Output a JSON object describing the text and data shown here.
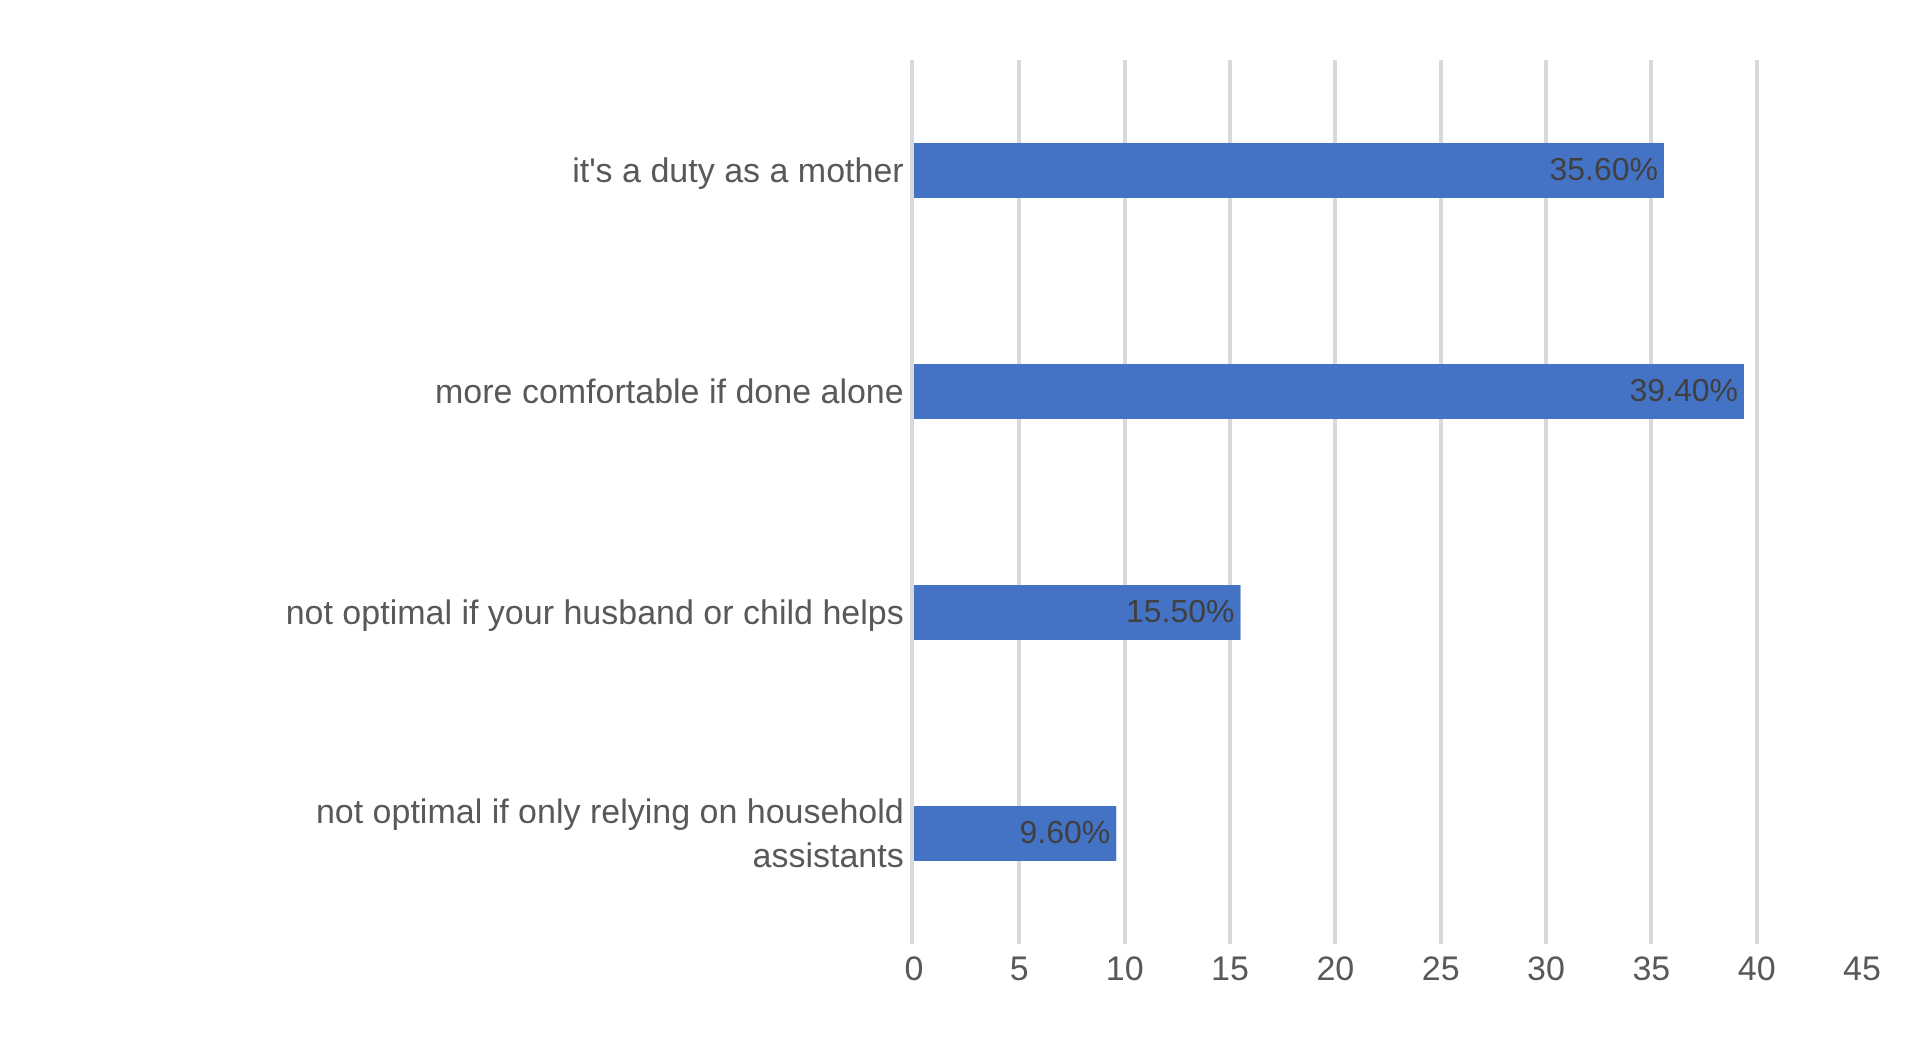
{
  "chart_data": {
    "type": "bar",
    "orientation": "horizontal",
    "categories": [
      "it's a duty as a mother",
      "more comfortable if done alone",
      "not optimal if your husband or child helps",
      "not optimal if only relying on household assistants"
    ],
    "values": [
      35.6,
      39.4,
      15.5,
      9.6
    ],
    "value_labels": [
      "35.60%",
      "39.40%",
      "15.50%",
      "9.60%"
    ],
    "color": "#4472c4",
    "xlim": [
      0,
      45
    ],
    "xticks": [
      0,
      5,
      10,
      15,
      20,
      25,
      30,
      35,
      40,
      45
    ],
    "grid": "x"
  }
}
